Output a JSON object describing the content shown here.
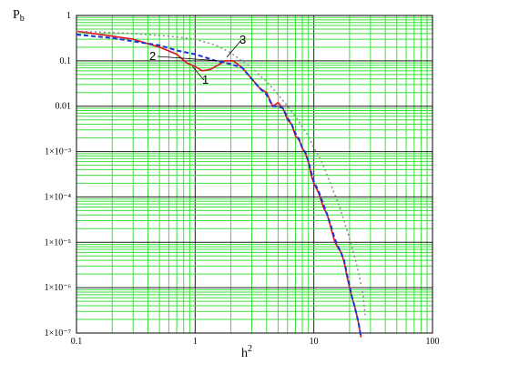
{
  "chart_data": {
    "type": "line",
    "xscale": "log",
    "yscale": "log",
    "xlim": [
      0.1,
      100
    ],
    "ylim": [
      1e-07,
      1
    ],
    "xlabel": "h",
    "xlabel_sup": "2",
    "ylabel": "P",
    "ylabel_sub": "b",
    "grid": true,
    "x_ticks": [
      {
        "value": 0.1,
        "label": "0.1"
      },
      {
        "value": 1,
        "label": "1"
      },
      {
        "value": 10,
        "label": "10"
      },
      {
        "value": 100,
        "label": "100"
      }
    ],
    "y_ticks": [
      {
        "value": 1,
        "label": "1"
      },
      {
        "value": 0.1,
        "label": "0.1"
      },
      {
        "value": 0.01,
        "label": "0.01"
      },
      {
        "value": 0.001,
        "label": "1×10⁻³"
      },
      {
        "value": 0.0001,
        "label": "1×10⁻⁴"
      },
      {
        "value": 1e-05,
        "label": "1×10⁻⁵"
      },
      {
        "value": 1e-06,
        "label": "1×10⁻⁶"
      },
      {
        "value": 1e-07,
        "label": "1×10⁻⁷"
      }
    ],
    "series": [
      {
        "name": "1",
        "color": "#e0141e",
        "style": "solid",
        "x": [
          0.1,
          0.2,
          0.3,
          0.5,
          0.7,
          0.85,
          1.0,
          1.15,
          1.35,
          1.55,
          1.8,
          2.1,
          2.5,
          3.0,
          3.5,
          4.0,
          4.5,
          5.0,
          5.5,
          6.0,
          6.5,
          7.0,
          7.5,
          8.0,
          8.5,
          9.0,
          9.5,
          10.0,
          11.0,
          12.0,
          13.0,
          14.0,
          15.0,
          16.0,
          17.0,
          18.0,
          19.0,
          20.0,
          21.0,
          22.0,
          23.0,
          24.0,
          25.0
        ],
        "y": [
          0.45,
          0.35,
          0.3,
          0.2,
          0.14,
          0.09,
          0.075,
          0.06,
          0.065,
          0.08,
          0.1,
          0.1,
          0.07,
          0.04,
          0.025,
          0.02,
          0.01,
          0.012,
          0.009,
          0.005,
          0.004,
          0.0022,
          0.0018,
          0.0012,
          0.0009,
          0.0006,
          0.0003,
          0.0002,
          0.00012,
          6e-05,
          4e-05,
          2e-05,
          1.03e-05,
          7.5e-06,
          6e-06,
          3.7e-06,
          1.8e-06,
          1e-06,
          6e-07,
          4e-07,
          2.5e-07,
          1.5e-07,
          8e-08
        ]
      },
      {
        "name": "2",
        "color": "#1f2fd6",
        "style": "dashed",
        "x": [
          0.1,
          0.2,
          0.3,
          0.5,
          0.7,
          1.0,
          1.2,
          1.5,
          2.0,
          2.5,
          3.0,
          3.5,
          4.0,
          4.5,
          5.0,
          5.5,
          6.0,
          6.5,
          7.0,
          7.5,
          8.0,
          8.5,
          9.0,
          9.5,
          10.0,
          11.0,
          12.0,
          13.0,
          14.0,
          15.0,
          16.0,
          17.0,
          18.0,
          19.0,
          20.0,
          21.0,
          22.0,
          23.0,
          24.0,
          25.0
        ],
        "y": [
          0.38,
          0.32,
          0.27,
          0.22,
          0.17,
          0.14,
          0.12,
          0.1,
          0.085,
          0.07,
          0.04,
          0.025,
          0.018,
          0.01,
          0.01,
          0.009,
          0.0055,
          0.004,
          0.0025,
          0.0019,
          0.0012,
          0.00095,
          0.0006,
          0.00035,
          0.00022,
          0.00013,
          7e-05,
          4e-05,
          2.2e-05,
          1.2e-05,
          8e-06,
          5.8e-06,
          4e-06,
          2e-06,
          1.1e-06,
          6e-07,
          4e-07,
          2.5e-07,
          1.5e-07,
          8e-08
        ]
      },
      {
        "name": "3",
        "color": "#8a8a8a",
        "style": "dotted",
        "x": [
          0.1,
          0.3,
          0.6,
          1.0,
          1.5,
          2.0,
          3.0,
          4.0,
          5.0,
          6.0,
          7.0,
          8.0,
          9.0,
          10.0,
          11.0,
          12.0,
          14.0,
          16.0,
          18.0,
          20.0,
          22.0,
          24.0,
          26.0,
          27.0
        ],
        "y": [
          0.45,
          0.4,
          0.35,
          0.3,
          0.22,
          0.15,
          0.07,
          0.035,
          0.018,
          0.01,
          0.006,
          0.0035,
          0.0022,
          0.0012,
          0.0008,
          0.0005,
          0.00018,
          7.5e-05,
          3e-05,
          1.2e-05,
          5e-06,
          2e-06,
          7e-07,
          2.5e-07
        ]
      }
    ],
    "annotations": [
      {
        "text": "1",
        "series": "1"
      },
      {
        "text": "2",
        "series": "2"
      },
      {
        "text": "3",
        "series": "3"
      }
    ]
  }
}
